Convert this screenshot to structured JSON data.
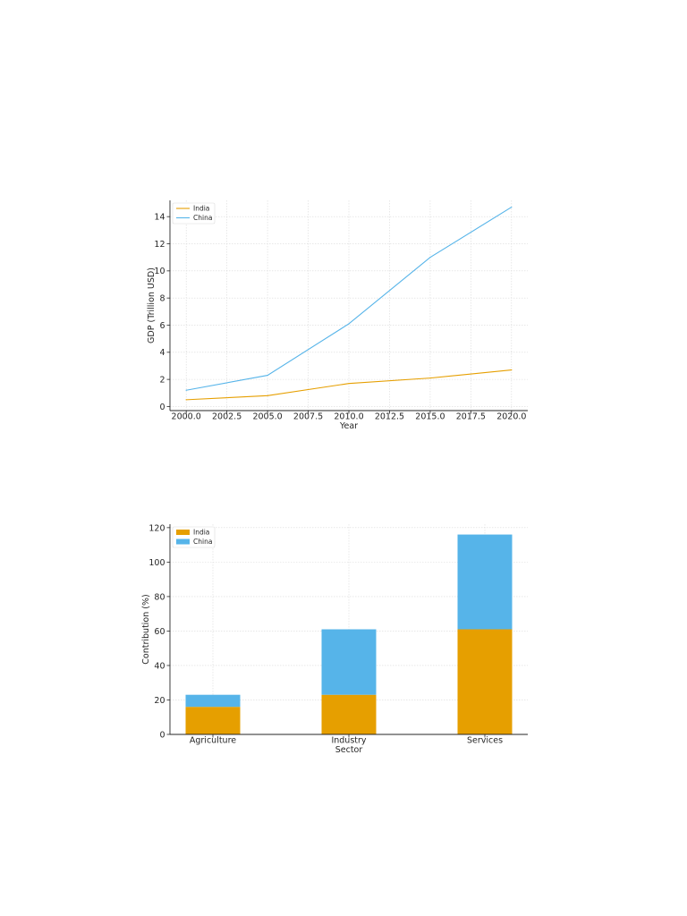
{
  "chart_data": [
    {
      "type": "line",
      "xlabel": "Year",
      "ylabel": "GDP (Trillion USD)",
      "xlim": [
        1999.0,
        2021.0
      ],
      "ylim": [
        -0.3,
        15.2
      ],
      "xticks": [
        2000.0,
        2002.5,
        2005.0,
        2007.5,
        2010.0,
        2012.5,
        2015.0,
        2017.5,
        2020.0
      ],
      "xtick_labels": [
        "2000.0",
        "2002.5",
        "2005.0",
        "2007.5",
        "2010.0",
        "2012.5",
        "2015.0",
        "2017.5",
        "2020.0"
      ],
      "yticks": [
        0,
        2,
        4,
        6,
        8,
        10,
        12,
        14
      ],
      "ytick_labels": [
        "0",
        "2",
        "4",
        "6",
        "8",
        "10",
        "12",
        "14"
      ],
      "x": [
        2000,
        2005,
        2010,
        2015,
        2020
      ],
      "series": [
        {
          "name": "India",
          "color": "#E69F00",
          "values": [
            0.5,
            0.8,
            1.7,
            2.1,
            2.7
          ]
        },
        {
          "name": "China",
          "color": "#56B4E9",
          "values": [
            1.2,
            2.3,
            6.1,
            11.0,
            14.7
          ]
        }
      ],
      "grid": true,
      "legend_position": "top-left"
    },
    {
      "type": "bar",
      "stacked": true,
      "xlabel": "Sector",
      "ylabel": "Contribution (%)",
      "ylim": [
        0,
        122
      ],
      "categories": [
        "Agriculture",
        "Industry",
        "Services"
      ],
      "yticks": [
        0,
        20,
        40,
        60,
        80,
        100,
        120
      ],
      "ytick_labels": [
        "0",
        "20",
        "40",
        "60",
        "80",
        "100",
        "120"
      ],
      "series": [
        {
          "name": "India",
          "color": "#E69F00",
          "values": [
            16,
            23,
            61
          ]
        },
        {
          "name": "China",
          "color": "#56B4E9",
          "values": [
            7,
            38,
            55
          ]
        }
      ],
      "grid": true,
      "legend_position": "top-left"
    }
  ]
}
